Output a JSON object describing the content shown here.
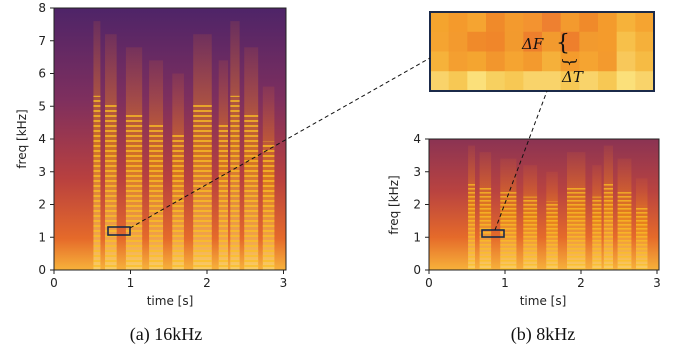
{
  "panel_a": {
    "xlabel": "time [s]",
    "ylabel": "freq [kHz]",
    "xticks": [
      "0",
      "1",
      "2",
      "3"
    ],
    "yticks": [
      "0",
      "1",
      "2",
      "3",
      "4",
      "5",
      "6",
      "7",
      "8"
    ],
    "caption": "(a) 16kHz"
  },
  "panel_b": {
    "xlabel": "time [s]",
    "ylabel": "freq [kHz]",
    "xticks": [
      "0",
      "1",
      "2",
      "3"
    ],
    "yticks": [
      "0",
      "1",
      "2",
      "3",
      "4"
    ],
    "caption": "(b) 8kHz"
  },
  "zoom": {
    "delta_f": "ΔF",
    "delta_t": "ΔT"
  },
  "colors": {
    "colormap": "inferno",
    "frame": "#1b2a4a"
  }
}
